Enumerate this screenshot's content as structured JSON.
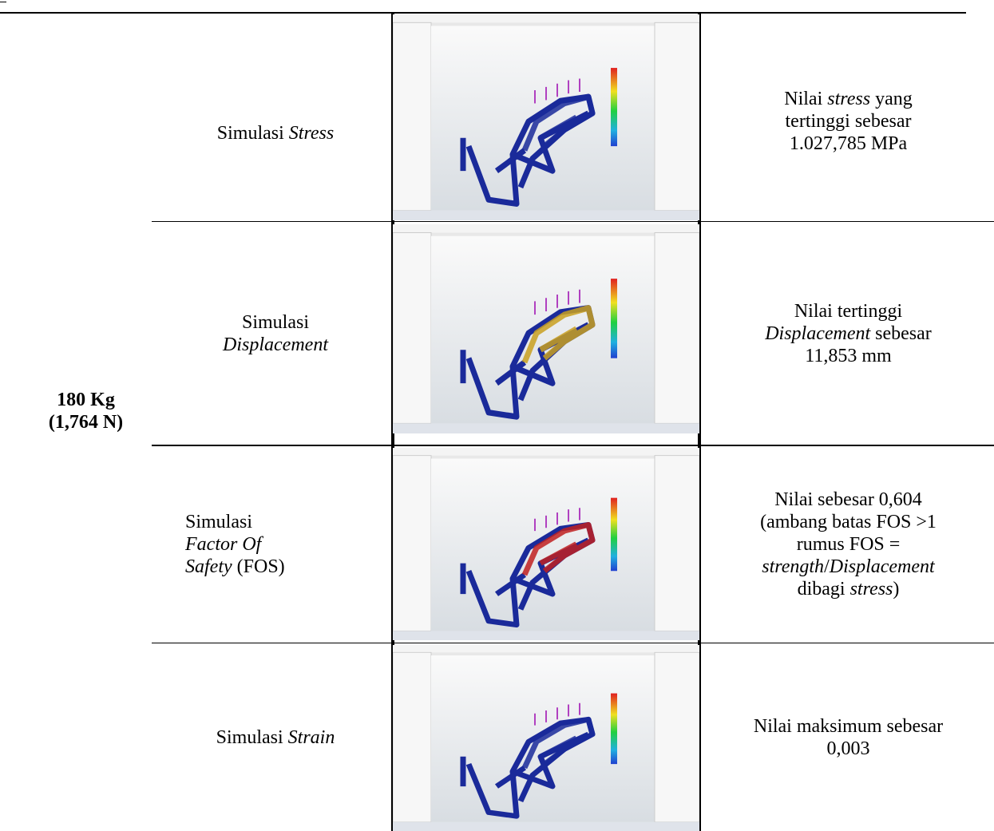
{
  "table": {
    "group_label": [
      "180 Kg",
      "(1,764 N)"
    ],
    "rows": [
      {
        "simulation": [
          "Simulasi",
          "Stress"
        ],
        "result": [
          "Nilai",
          "stress",
          "yang",
          "tertinggi sebesar",
          "1.027,785 MPa"
        ]
      },
      {
        "simulation": [
          "Simulasi",
          "Displacement"
        ],
        "result": [
          "Nilai tertinggi",
          "Displacement",
          "sebesar",
          "11,853 mm"
        ]
      },
      {
        "simulation": [
          "Simulasi",
          "Factor Of",
          "Safety",
          "(FOS)"
        ],
        "result": [
          "Nilai sebesar 0,604",
          "(ambang batas FOS >1",
          "rumus FOS =",
          "strength",
          "/",
          "Displacement",
          "dibagi",
          "stress",
          ")"
        ]
      },
      {
        "simulation": [
          "Simulasi",
          "Strain"
        ],
        "result": [
          "Nilai maksimum sebesar",
          "0,003"
        ]
      }
    ]
  }
}
